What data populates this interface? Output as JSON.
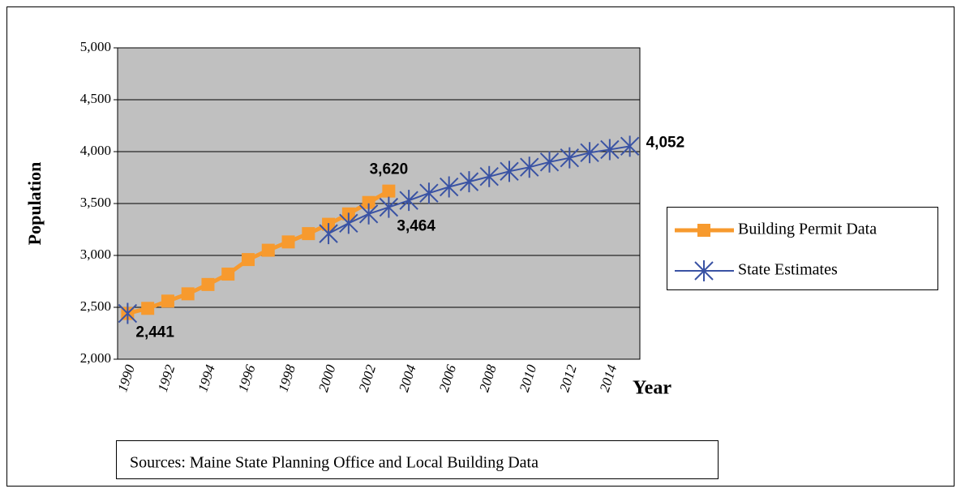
{
  "chart_data": {
    "type": "line",
    "y_label": "Population",
    "x_label": "Year",
    "source": "Sources: Maine State Planning Office and Local Building Data",
    "categories": [
      "1990",
      null,
      "1992",
      null,
      "1994",
      null,
      "1996",
      null,
      "1998",
      null,
      "2000",
      null,
      "2002",
      null,
      "2004",
      null,
      "2006",
      null,
      "2008",
      null,
      "2010",
      null,
      "2012",
      null,
      "2014",
      null
    ],
    "series": [
      {
        "name": "Building Permit Data",
        "color": "#f79a2e",
        "marker": "square",
        "values": [
          2441,
          2490,
          2560,
          2630,
          2720,
          2820,
          2960,
          3050,
          3130,
          3210,
          3300,
          3400,
          3510,
          3620,
          null,
          null,
          null,
          null,
          null,
          null,
          null,
          null,
          null,
          null,
          null,
          null
        ],
        "value_labels": [
          null,
          null,
          null,
          null,
          null,
          null,
          null,
          null,
          null,
          null,
          null,
          null,
          null,
          "3,620",
          null,
          null,
          null,
          null,
          null,
          null,
          null,
          null,
          null,
          null,
          null,
          null
        ]
      },
      {
        "name": "State Estimates",
        "color": "#3a53a4",
        "marker": "star",
        "values": [
          2441,
          null,
          null,
          null,
          null,
          null,
          null,
          null,
          null,
          null,
          3210,
          3310,
          3400,
          3464,
          3530,
          3600,
          3660,
          3710,
          3760,
          3810,
          3850,
          3900,
          3940,
          3990,
          4020,
          4052
        ],
        "value_labels": [
          "2,441",
          null,
          null,
          null,
          null,
          null,
          null,
          null,
          null,
          null,
          null,
          null,
          null,
          "3,464",
          null,
          null,
          null,
          null,
          null,
          null,
          null,
          null,
          null,
          null,
          null,
          "4,052"
        ]
      }
    ],
    "ylim": [
      2000,
      5000
    ],
    "yticks": [
      {
        "value": 2000,
        "label": "2,000"
      },
      {
        "value": 2500,
        "label": "2,500"
      },
      {
        "value": 3000,
        "label": "3,000"
      },
      {
        "value": 3500,
        "label": "3,500"
      },
      {
        "value": 4000,
        "label": "4,000"
      },
      {
        "value": 4500,
        "label": "4,500"
      },
      {
        "value": 5000,
        "label": "5,000"
      }
    ],
    "grid": true,
    "legend": "right",
    "plot_background": "#c0c0c0"
  }
}
